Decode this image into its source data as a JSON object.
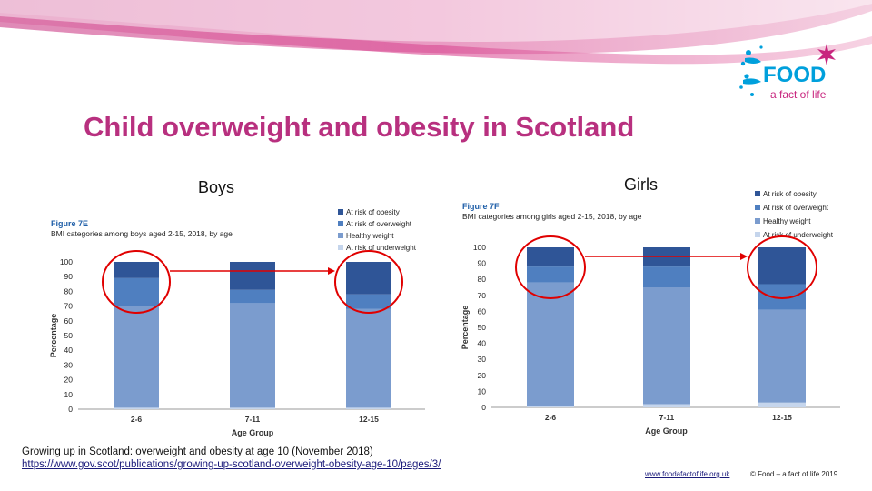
{
  "slide": {
    "title": "Child overweight and obesity in Scotland",
    "boys_label": "Boys",
    "girls_label": "Girls",
    "source_line1": "Growing up in Scotland: overweight and obesity at age 10 (November 2018)",
    "source_line2": "https://www.gov.scot/publications/growing-up-scotland-overweight-obesity-age-10/pages/3/",
    "footer_url": "www.foodafactoflife.org.uk",
    "footer_copy": "© Food – a fact of life 2019"
  },
  "logo": {
    "word": "FOOD",
    "tagline": "a fact of life",
    "color_main": "#00a0dc",
    "color_star": "#c8257e"
  },
  "colors": {
    "banner": "#d6508f",
    "title": "#b8307f",
    "obesity": "#2f5597",
    "overweight": "#4f7fc0",
    "healthy": "#7b9cce",
    "underweight": "#c5d5ec",
    "highlight": "#e00000",
    "arrow": "#e00000"
  },
  "chart_data": [
    {
      "type": "bar",
      "stacked": true,
      "figure_label": "Figure 7E",
      "title": "BMI categories among boys aged 2-15, 2018, by age",
      "xlabel": "Age Group",
      "ylabel": "Percentage",
      "categories": [
        "2-6",
        "7-11",
        "12-15"
      ],
      "ylim": [
        0,
        100
      ],
      "yticks": [
        0,
        10,
        20,
        30,
        40,
        50,
        60,
        70,
        80,
        90,
        100
      ],
      "series": [
        {
          "name": "At risk of underweight",
          "values": [
            1,
            1,
            1
          ]
        },
        {
          "name": "Healthy weight",
          "values": [
            69,
            71,
            67
          ]
        },
        {
          "name": "At risk of overweight",
          "values": [
            19,
            9,
            10
          ]
        },
        {
          "name": "At risk of obesity",
          "values": [
            11,
            19,
            22
          ]
        }
      ],
      "legend_order": [
        "At risk of obesity",
        "At risk of overweight",
        "Healthy weight",
        "At risk of underweight"
      ],
      "legend": "top-right"
    },
    {
      "type": "bar",
      "stacked": true,
      "figure_label": "Figure 7F",
      "title": "BMI categories among girls aged 2-15, 2018, by age",
      "xlabel": "Age Group",
      "ylabel": "Percentage",
      "categories": [
        "2-6",
        "7-11",
        "12-15"
      ],
      "ylim": [
        0,
        100
      ],
      "yticks": [
        0,
        10,
        20,
        30,
        40,
        50,
        60,
        70,
        80,
        90,
        100
      ],
      "series": [
        {
          "name": "At risk of underweight",
          "values": [
            1,
            2,
            3
          ]
        },
        {
          "name": "Healthy weight",
          "values": [
            77,
            73,
            58
          ]
        },
        {
          "name": "At risk of overweight",
          "values": [
            10,
            13,
            16
          ]
        },
        {
          "name": "At risk of obesity",
          "values": [
            12,
            12,
            23
          ]
        }
      ],
      "legend_order": [
        "At risk of obesity",
        "At risk of overweight",
        "Healthy weight",
        "At risk of underweight"
      ],
      "legend": "top-right"
    }
  ]
}
